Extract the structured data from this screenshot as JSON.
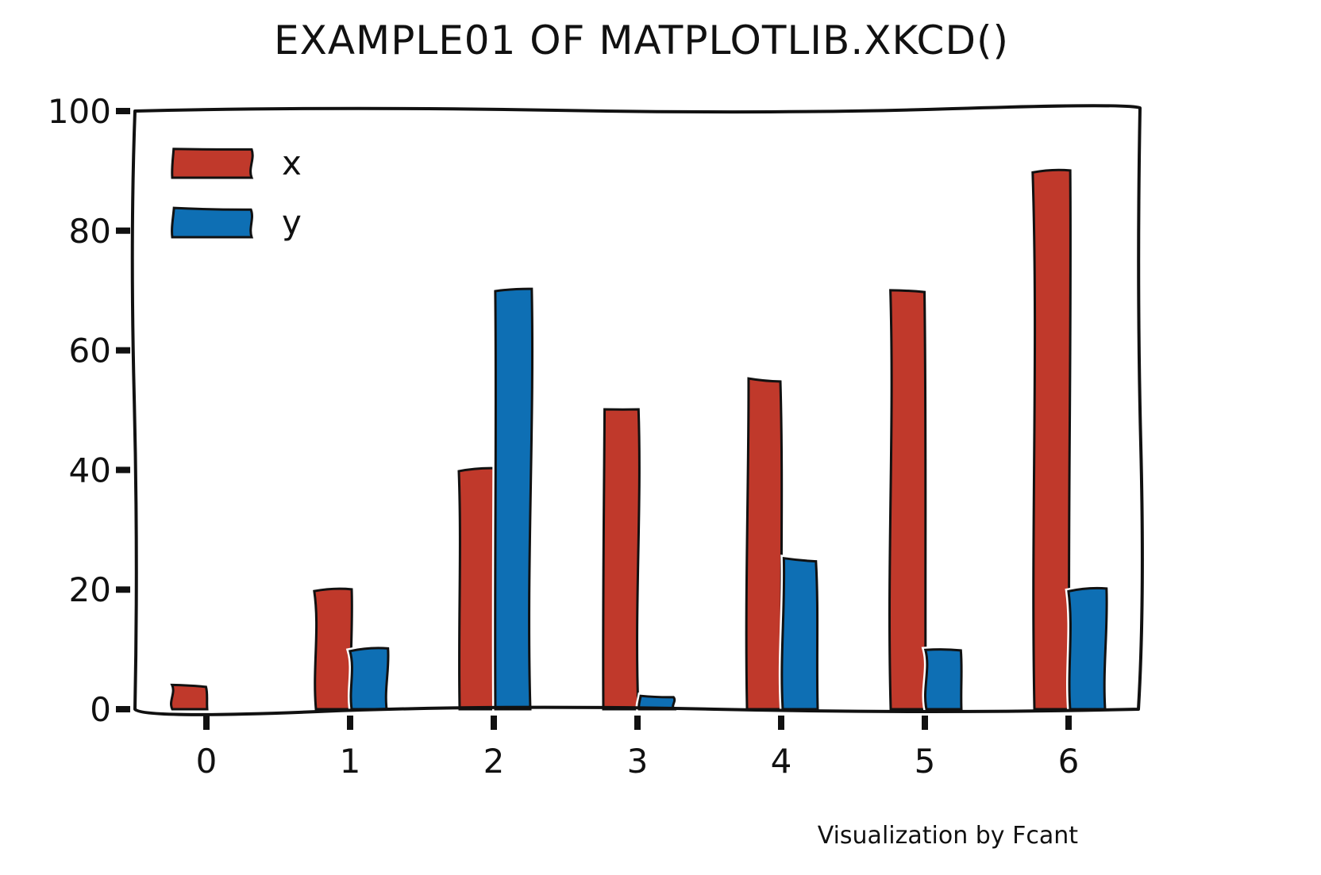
{
  "chart_data": {
    "type": "bar",
    "title": "EXAMPLE01 OF MATPLOTLIB.XKCD()",
    "xlabel": "",
    "ylabel": "",
    "categories": [
      "0",
      "1",
      "2",
      "3",
      "4",
      "5",
      "6"
    ],
    "series": [
      {
        "name": "x",
        "color": "#c0392b",
        "values": [
          4,
          20,
          40,
          50,
          55,
          70,
          90
        ]
      },
      {
        "name": "y",
        "color": "#0e6fb4",
        "values": [
          0,
          10,
          70,
          2,
          25,
          10,
          20
        ]
      }
    ],
    "ylim": [
      0,
      100
    ],
    "yticks": [
      "0",
      "20",
      "40",
      "60",
      "80",
      "100"
    ],
    "grid": false,
    "legend_position": "top-left",
    "style": "xkcd"
  },
  "credit": "Visualization by Fcant"
}
